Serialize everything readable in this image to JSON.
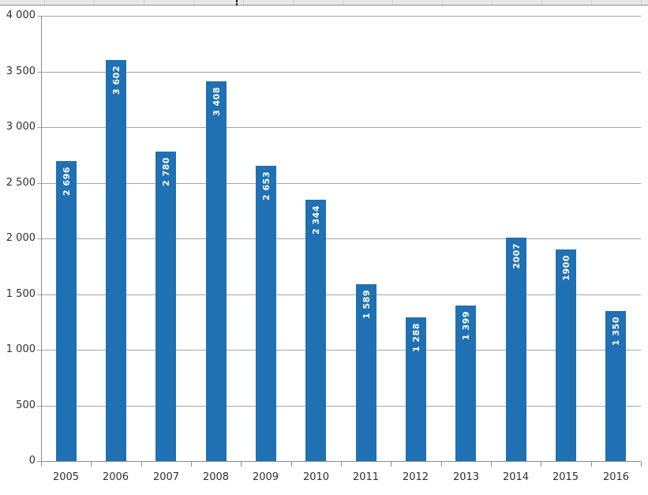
{
  "context": {
    "app_hint": "spreadsheet-embedded-bar-chart",
    "top_strip_note": "partial worksheet cell row visible above chart"
  },
  "colors": {
    "bar": "#2070b4",
    "data_label": "#ffffff",
    "gridline": "#a6a6a6",
    "axis_line": "#8c8c8c",
    "axis_text": "#303030",
    "strip_bg": "#e8e8e8",
    "strip_border": "#8f8f8f",
    "strip_cell_line": "#d2d2dc",
    "background": "#ffffff"
  },
  "chart_data": {
    "type": "bar",
    "title": "",
    "xlabel": "",
    "ylabel": "",
    "categories": [
      "2005",
      "2006",
      "2007",
      "2008",
      "2009",
      "2010",
      "2011",
      "2012",
      "2013",
      "2014",
      "2015",
      "2016"
    ],
    "values": [
      2696,
      3602,
      2780,
      3408,
      2653,
      2344,
      1589,
      1288,
      1399,
      2007,
      1900,
      1350
    ],
    "data_labels": [
      "2 696",
      "3 602",
      "2 780",
      "3 408",
      "2 653",
      "2 344",
      "1 589",
      "1 288",
      "1 399",
      "2007",
      "1900",
      "1 350"
    ],
    "ylim": [
      0,
      4000
    ],
    "ytick_step": 500,
    "ytick_labels": [
      "0",
      "500",
      "1 000",
      "1 500",
      "2 000",
      "2 500",
      "3 000",
      "3 500",
      "4 000"
    ],
    "grid": true,
    "legend": "none",
    "data_label_position": "inside-end",
    "data_label_rotation_deg": 90,
    "bar_color": "#2070b4"
  }
}
